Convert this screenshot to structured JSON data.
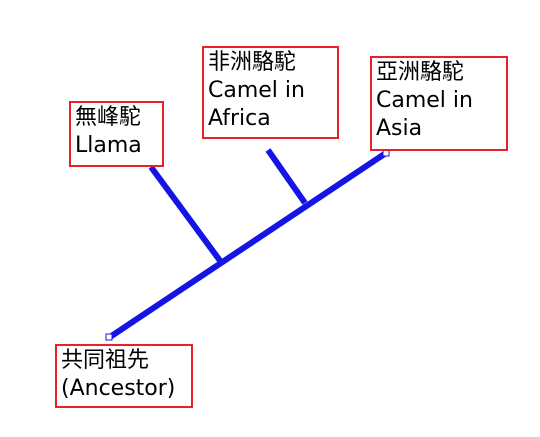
{
  "diagram": {
    "type": "phylogenetic-tree",
    "colors": {
      "branch": "#1414e6",
      "label_border": "#e8202a",
      "label_text": "#000000",
      "handle_border": "#1414e6",
      "handle_fill": "#ffffff"
    },
    "labels": {
      "llama": {
        "line1": "無峰駝",
        "line2": "Llama"
      },
      "camel_africa": {
        "line1": "非洲駱駝",
        "line2": "Camel in",
        "line3": "Africa"
      },
      "camel_asia": {
        "line1": "亞洲駱駝",
        "line2": "Camel in",
        "line3": "Asia"
      },
      "ancestor": {
        "line1": "共同祖先",
        "line2": "(Ancestor)"
      }
    }
  }
}
